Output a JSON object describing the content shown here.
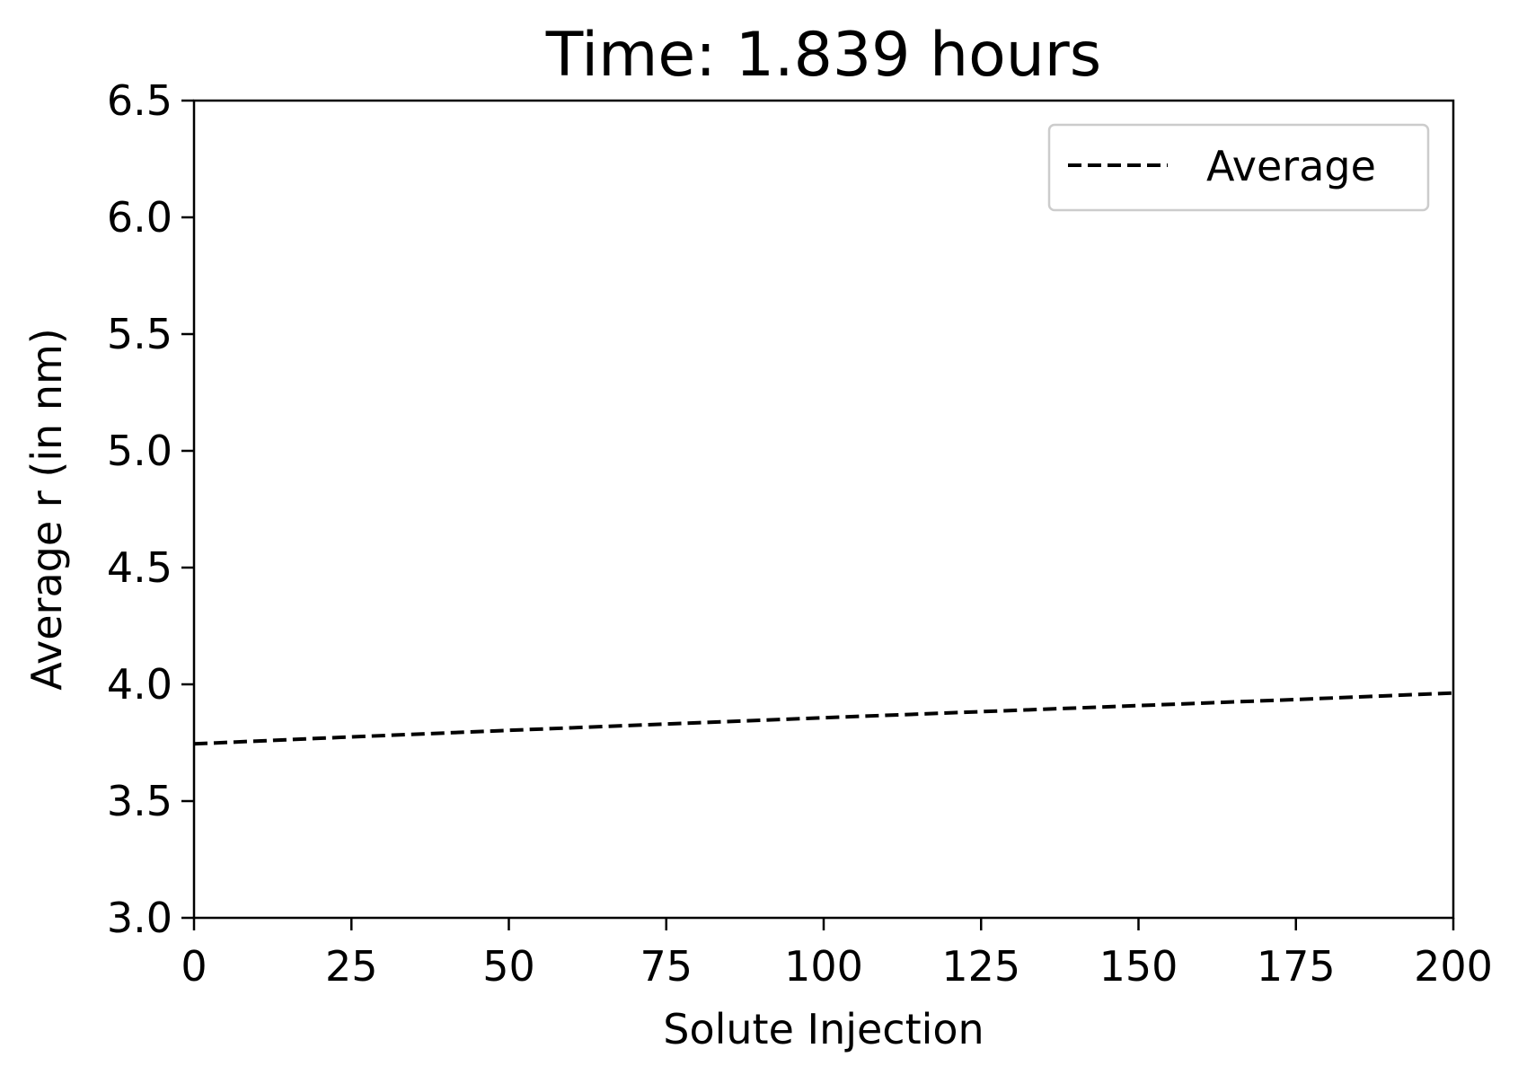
{
  "chart_data": {
    "type": "line",
    "title": "Time: 1.839 hours",
    "xlabel": "Solute Injection",
    "ylabel": "Average r (in nm)",
    "xlim": [
      0,
      200
    ],
    "ylim": [
      3.0,
      6.5
    ],
    "xticks": [
      0,
      25,
      50,
      75,
      100,
      125,
      150,
      175,
      200
    ],
    "xtick_labels": [
      "0",
      "25",
      "50",
      "75",
      "100",
      "125",
      "150",
      "175",
      "200"
    ],
    "yticks": [
      3.0,
      3.5,
      4.0,
      4.5,
      5.0,
      5.5,
      6.0,
      6.5
    ],
    "ytick_labels": [
      "3.0",
      "3.5",
      "4.0",
      "4.5",
      "5.0",
      "5.5",
      "6.0",
      "6.5"
    ],
    "grid": false,
    "legend_position": "top-right",
    "series": [
      {
        "name": "Average",
        "style": "dashed",
        "color": "#000000",
        "x": [
          0,
          25,
          50,
          75,
          100,
          125,
          150,
          175,
          200
        ],
        "y": [
          3.745,
          3.775,
          3.803,
          3.83,
          3.857,
          3.883,
          3.909,
          3.935,
          3.963
        ]
      }
    ]
  }
}
